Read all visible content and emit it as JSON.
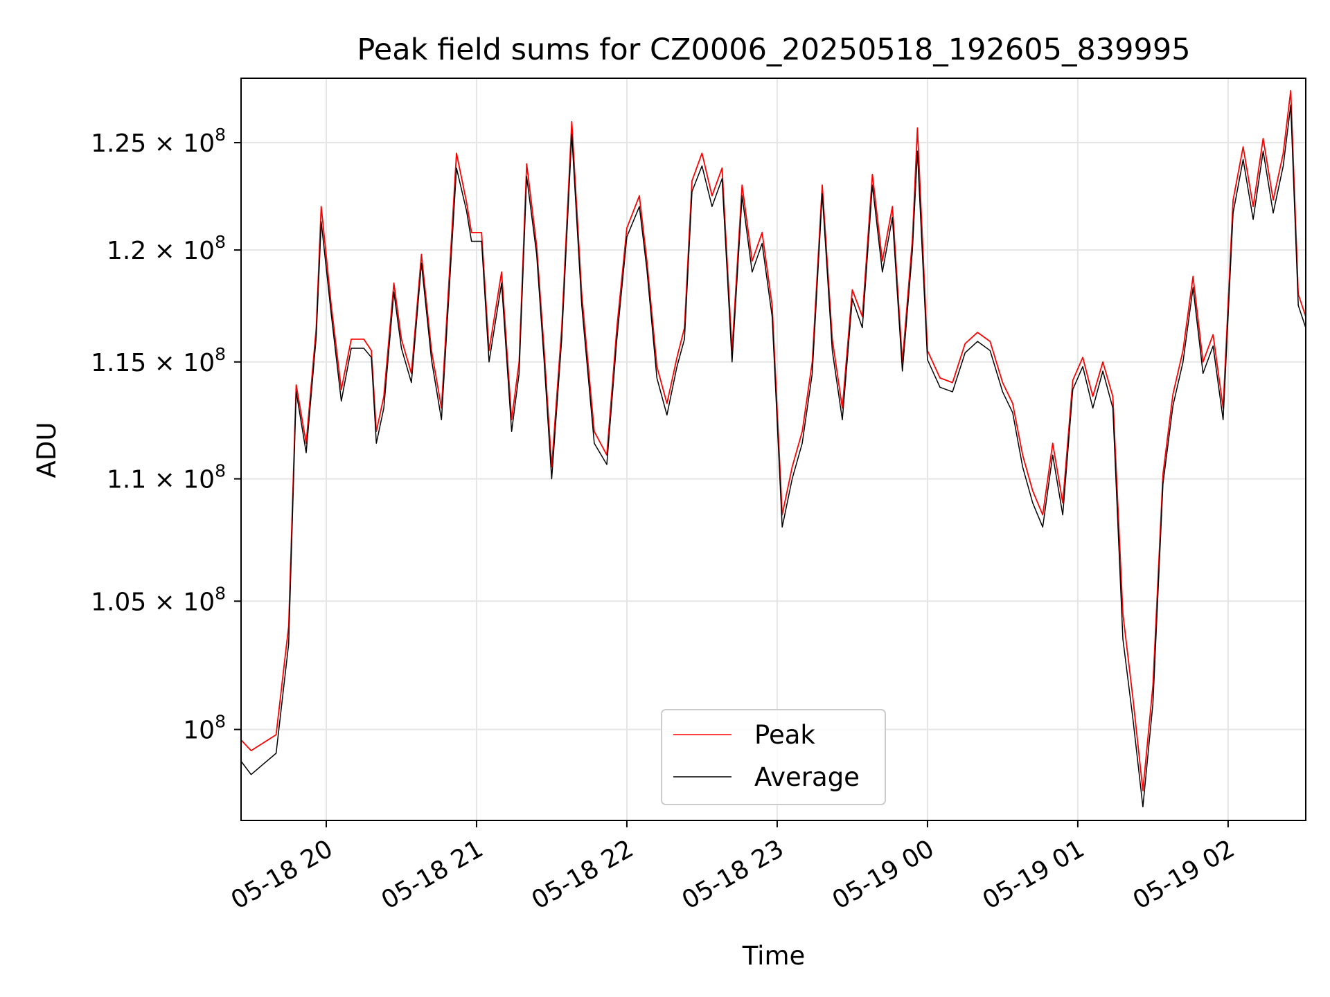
{
  "chart_data": {
    "type": "line",
    "title": "Peak field sums for CZ0006_20250518_192605_839995",
    "xlabel": "Time",
    "ylabel": "ADU",
    "yscale": "log",
    "grid": true,
    "legend_position": "bottom-center",
    "xlim": [
      "2025-05-18 19:26",
      "2025-05-19 02:31"
    ],
    "ylim": [
      96600000,
      128100000
    ],
    "x_ticks": [
      {
        "value": "2025-05-18 20:00",
        "label": "05-18 20"
      },
      {
        "value": "2025-05-18 21:00",
        "label": "05-18 21"
      },
      {
        "value": "2025-05-18 22:00",
        "label": "05-18 22"
      },
      {
        "value": "2025-05-18 23:00",
        "label": "05-18 23"
      },
      {
        "value": "2025-05-19 00:00",
        "label": "05-19 00"
      },
      {
        "value": "2025-05-19 01:00",
        "label": "05-19 01"
      },
      {
        "value": "2025-05-19 02:00",
        "label": "05-19 02"
      }
    ],
    "y_ticks": [
      {
        "value": 100000000,
        "label": "10",
        "exp": "8"
      },
      {
        "value": 105000000,
        "label": "1.05 × 10",
        "exp": "8"
      },
      {
        "value": 110000000,
        "label": "1.1 × 10",
        "exp": "8"
      },
      {
        "value": 115000000,
        "label": "1.15 × 10",
        "exp": "8"
      },
      {
        "value": 120000000,
        "label": "1.2 × 10",
        "exp": "8"
      },
      {
        "value": 125000000,
        "label": "1.25 × 10",
        "exp": "8"
      }
    ],
    "series": [
      {
        "name": "Peak",
        "color": "#ff0000",
        "points": [
          [
            "2025-05-18 19:26",
            99600000
          ],
          [
            "2025-05-18 19:30",
            99200000
          ],
          [
            "2025-05-18 19:35",
            99500000
          ],
          [
            "2025-05-18 19:40",
            99800000
          ],
          [
            "2025-05-18 19:45",
            104000000
          ],
          [
            "2025-05-18 19:48",
            114000000
          ],
          [
            "2025-05-18 19:52",
            111500000
          ],
          [
            "2025-05-18 19:56",
            116500000
          ],
          [
            "2025-05-18 19:58",
            122000000
          ],
          [
            "2025-05-18 20:02",
            117500000
          ],
          [
            "2025-05-18 20:06",
            113800000
          ],
          [
            "2025-05-18 20:10",
            116000000
          ],
          [
            "2025-05-18 20:15",
            116000000
          ],
          [
            "2025-05-18 20:18",
            115500000
          ],
          [
            "2025-05-18 20:20",
            112000000
          ],
          [
            "2025-05-18 20:23",
            113500000
          ],
          [
            "2025-05-18 20:27",
            118500000
          ],
          [
            "2025-05-18 20:30",
            116000000
          ],
          [
            "2025-05-18 20:34",
            114500000
          ],
          [
            "2025-05-18 20:38",
            119800000
          ],
          [
            "2025-05-18 20:42",
            115500000
          ],
          [
            "2025-05-18 20:46",
            113000000
          ],
          [
            "2025-05-18 20:52",
            124500000
          ],
          [
            "2025-05-18 20:56",
            122200000
          ],
          [
            "2025-05-18 20:58",
            120800000
          ],
          [
            "2025-05-18 21:02",
            120800000
          ],
          [
            "2025-05-18 21:05",
            115500000
          ],
          [
            "2025-05-18 21:10",
            119000000
          ],
          [
            "2025-05-18 21:14",
            112500000
          ],
          [
            "2025-05-18 21:17",
            115000000
          ],
          [
            "2025-05-18 21:20",
            124000000
          ],
          [
            "2025-05-18 21:24",
            120200000
          ],
          [
            "2025-05-18 21:27",
            115500000
          ],
          [
            "2025-05-18 21:30",
            110500000
          ],
          [
            "2025-05-18 21:34",
            116500000
          ],
          [
            "2025-05-18 21:38",
            126000000
          ],
          [
            "2025-05-18 21:42",
            118000000
          ],
          [
            "2025-05-18 21:47",
            112000000
          ],
          [
            "2025-05-18 21:52",
            111000000
          ],
          [
            "2025-05-18 21:56",
            116500000
          ],
          [
            "2025-05-18 22:00",
            121000000
          ],
          [
            "2025-05-18 22:05",
            122500000
          ],
          [
            "2025-05-18 22:08",
            119500000
          ],
          [
            "2025-05-18 22:12",
            114800000
          ],
          [
            "2025-05-18 22:16",
            113200000
          ],
          [
            "2025-05-18 22:20",
            115200000
          ],
          [
            "2025-05-18 22:23",
            116500000
          ],
          [
            "2025-05-18 22:26",
            123200000
          ],
          [
            "2025-05-18 22:30",
            124500000
          ],
          [
            "2025-05-18 22:34",
            122500000
          ],
          [
            "2025-05-18 22:38",
            123800000
          ],
          [
            "2025-05-18 22:42",
            115500000
          ],
          [
            "2025-05-18 22:46",
            123000000
          ],
          [
            "2025-05-18 22:50",
            119500000
          ],
          [
            "2025-05-18 22:54",
            120800000
          ],
          [
            "2025-05-18 22:58",
            117500000
          ],
          [
            "2025-05-18 23:02",
            108500000
          ],
          [
            "2025-05-18 23:06",
            110500000
          ],
          [
            "2025-05-18 23:10",
            112000000
          ],
          [
            "2025-05-18 23:14",
            115000000
          ],
          [
            "2025-05-18 23:18",
            123000000
          ],
          [
            "2025-05-18 23:22",
            116000000
          ],
          [
            "2025-05-18 23:26",
            113000000
          ],
          [
            "2025-05-18 23:30",
            118200000
          ],
          [
            "2025-05-18 23:34",
            117000000
          ],
          [
            "2025-05-18 23:38",
            123500000
          ],
          [
            "2025-05-18 23:42",
            119500000
          ],
          [
            "2025-05-18 23:46",
            122000000
          ],
          [
            "2025-05-18 23:50",
            115000000
          ],
          [
            "2025-05-18 23:54",
            120500000
          ],
          [
            "2025-05-18 23:56",
            125700000
          ],
          [
            "2025-05-19 00:00",
            115500000
          ],
          [
            "2025-05-19 00:05",
            114300000
          ],
          [
            "2025-05-19 00:10",
            114100000
          ],
          [
            "2025-05-19 00:15",
            115800000
          ],
          [
            "2025-05-19 00:20",
            116300000
          ],
          [
            "2025-05-19 00:25",
            115900000
          ],
          [
            "2025-05-19 00:30",
            114100000
          ],
          [
            "2025-05-19 00:34",
            113200000
          ],
          [
            "2025-05-19 00:38",
            111000000
          ],
          [
            "2025-05-19 00:42",
            109500000
          ],
          [
            "2025-05-19 00:46",
            108500000
          ],
          [
            "2025-05-19 00:50",
            111500000
          ],
          [
            "2025-05-19 00:54",
            109000000
          ],
          [
            "2025-05-19 00:58",
            114200000
          ],
          [
            "2025-05-19 01:02",
            115200000
          ],
          [
            "2025-05-19 01:06",
            113500000
          ],
          [
            "2025-05-19 01:10",
            115000000
          ],
          [
            "2025-05-19 01:14",
            113500000
          ],
          [
            "2025-05-19 01:18",
            104500000
          ],
          [
            "2025-05-19 01:22",
            101200000
          ],
          [
            "2025-05-19 01:26",
            97700000
          ],
          [
            "2025-05-19 01:30",
            101700000
          ],
          [
            "2025-05-19 01:34",
            110200000
          ],
          [
            "2025-05-19 01:38",
            113600000
          ],
          [
            "2025-05-19 01:42",
            115500000
          ],
          [
            "2025-05-19 01:46",
            118800000
          ],
          [
            "2025-05-19 01:50",
            115000000
          ],
          [
            "2025-05-19 01:54",
            116200000
          ],
          [
            "2025-05-19 01:58",
            113000000
          ],
          [
            "2025-05-19 02:02",
            122300000
          ],
          [
            "2025-05-19 02:06",
            124800000
          ],
          [
            "2025-05-19 02:10",
            122000000
          ],
          [
            "2025-05-19 02:14",
            125200000
          ],
          [
            "2025-05-19 02:18",
            122300000
          ],
          [
            "2025-05-19 02:22",
            124500000
          ],
          [
            "2025-05-19 02:25",
            127500000
          ],
          [
            "2025-05-19 02:28",
            118000000
          ],
          [
            "2025-05-19 02:31",
            117000000
          ]
        ]
      },
      {
        "name": "Average",
        "color": "#000000",
        "points": [
          [
            "2025-05-18 19:26",
            98800000
          ],
          [
            "2025-05-18 19:30",
            98300000
          ],
          [
            "2025-05-18 19:35",
            98700000
          ],
          [
            "2025-05-18 19:40",
            99100000
          ],
          [
            "2025-05-18 19:45",
            103300000
          ],
          [
            "2025-05-18 19:48",
            113700000
          ],
          [
            "2025-05-18 19:52",
            111100000
          ],
          [
            "2025-05-18 19:56",
            116100000
          ],
          [
            "2025-05-18 19:58",
            121300000
          ],
          [
            "2025-05-18 20:02",
            117100000
          ],
          [
            "2025-05-18 20:06",
            113300000
          ],
          [
            "2025-05-18 20:10",
            115600000
          ],
          [
            "2025-05-18 20:15",
            115600000
          ],
          [
            "2025-05-18 20:18",
            115200000
          ],
          [
            "2025-05-18 20:20",
            111500000
          ],
          [
            "2025-05-18 20:23",
            113000000
          ],
          [
            "2025-05-18 20:27",
            118100000
          ],
          [
            "2025-05-18 20:30",
            115600000
          ],
          [
            "2025-05-18 20:34",
            114100000
          ],
          [
            "2025-05-18 20:38",
            119400000
          ],
          [
            "2025-05-18 20:42",
            115100000
          ],
          [
            "2025-05-18 20:46",
            112500000
          ],
          [
            "2025-05-18 20:52",
            123800000
          ],
          [
            "2025-05-18 20:56",
            121800000
          ],
          [
            "2025-05-18 20:58",
            120400000
          ],
          [
            "2025-05-18 21:02",
            120400000
          ],
          [
            "2025-05-18 21:05",
            115000000
          ],
          [
            "2025-05-18 21:10",
            118500000
          ],
          [
            "2025-05-18 21:14",
            112000000
          ],
          [
            "2025-05-18 21:17",
            114500000
          ],
          [
            "2025-05-18 21:20",
            123400000
          ],
          [
            "2025-05-18 21:24",
            119800000
          ],
          [
            "2025-05-18 21:27",
            115000000
          ],
          [
            "2025-05-18 21:30",
            110000000
          ],
          [
            "2025-05-18 21:34",
            116000000
          ],
          [
            "2025-05-18 21:38",
            125400000
          ],
          [
            "2025-05-18 21:42",
            117500000
          ],
          [
            "2025-05-18 21:47",
            111500000
          ],
          [
            "2025-05-18 21:52",
            110600000
          ],
          [
            "2025-05-18 21:56",
            116000000
          ],
          [
            "2025-05-18 22:00",
            120600000
          ],
          [
            "2025-05-18 22:05",
            122000000
          ],
          [
            "2025-05-18 22:08",
            119100000
          ],
          [
            "2025-05-18 22:12",
            114300000
          ],
          [
            "2025-05-18 22:16",
            112700000
          ],
          [
            "2025-05-18 22:20",
            114800000
          ],
          [
            "2025-05-18 22:23",
            116000000
          ],
          [
            "2025-05-18 22:26",
            122700000
          ],
          [
            "2025-05-18 22:30",
            123900000
          ],
          [
            "2025-05-18 22:34",
            122000000
          ],
          [
            "2025-05-18 22:38",
            123300000
          ],
          [
            "2025-05-18 22:42",
            115000000
          ],
          [
            "2025-05-18 22:46",
            122500000
          ],
          [
            "2025-05-18 22:50",
            119000000
          ],
          [
            "2025-05-18 22:54",
            120300000
          ],
          [
            "2025-05-18 22:58",
            117000000
          ],
          [
            "2025-05-18 23:02",
            108000000
          ],
          [
            "2025-05-18 23:06",
            110000000
          ],
          [
            "2025-05-18 23:10",
            111500000
          ],
          [
            "2025-05-18 23:14",
            114500000
          ],
          [
            "2025-05-18 23:18",
            122600000
          ],
          [
            "2025-05-18 23:22",
            115500000
          ],
          [
            "2025-05-18 23:26",
            112500000
          ],
          [
            "2025-05-18 23:30",
            117800000
          ],
          [
            "2025-05-18 23:34",
            116500000
          ],
          [
            "2025-05-18 23:38",
            123000000
          ],
          [
            "2025-05-18 23:42",
            119000000
          ],
          [
            "2025-05-18 23:46",
            121500000
          ],
          [
            "2025-05-18 23:50",
            114600000
          ],
          [
            "2025-05-18 23:54",
            120000000
          ],
          [
            "2025-05-18 23:56",
            124600000
          ],
          [
            "2025-05-19 00:00",
            115100000
          ],
          [
            "2025-05-19 00:05",
            113900000
          ],
          [
            "2025-05-19 00:10",
            113700000
          ],
          [
            "2025-05-19 00:15",
            115400000
          ],
          [
            "2025-05-19 00:20",
            115900000
          ],
          [
            "2025-05-19 00:25",
            115500000
          ],
          [
            "2025-05-19 00:30",
            113700000
          ],
          [
            "2025-05-19 00:34",
            112800000
          ],
          [
            "2025-05-19 00:38",
            110500000
          ],
          [
            "2025-05-19 00:42",
            109000000
          ],
          [
            "2025-05-19 00:46",
            108000000
          ],
          [
            "2025-05-19 00:50",
            111000000
          ],
          [
            "2025-05-19 00:54",
            108500000
          ],
          [
            "2025-05-19 00:58",
            113800000
          ],
          [
            "2025-05-19 01:02",
            114800000
          ],
          [
            "2025-05-19 01:06",
            113000000
          ],
          [
            "2025-05-19 01:10",
            114600000
          ],
          [
            "2025-05-19 01:14",
            113000000
          ],
          [
            "2025-05-19 01:18",
            103500000
          ],
          [
            "2025-05-19 01:22",
            100400000
          ],
          [
            "2025-05-19 01:26",
            97100000
          ],
          [
            "2025-05-19 01:30",
            101000000
          ],
          [
            "2025-05-19 01:34",
            109800000
          ],
          [
            "2025-05-19 01:38",
            113100000
          ],
          [
            "2025-05-19 01:42",
            115000000
          ],
          [
            "2025-05-19 01:46",
            118300000
          ],
          [
            "2025-05-19 01:50",
            114500000
          ],
          [
            "2025-05-19 01:54",
            115700000
          ],
          [
            "2025-05-19 01:58",
            112500000
          ],
          [
            "2025-05-19 02:02",
            121700000
          ],
          [
            "2025-05-19 02:06",
            124200000
          ],
          [
            "2025-05-19 02:10",
            121400000
          ],
          [
            "2025-05-19 02:14",
            124600000
          ],
          [
            "2025-05-19 02:18",
            121700000
          ],
          [
            "2025-05-19 02:22",
            123900000
          ],
          [
            "2025-05-19 02:25",
            126800000
          ],
          [
            "2025-05-19 02:28",
            117500000
          ],
          [
            "2025-05-19 02:31",
            116500000
          ]
        ]
      }
    ]
  }
}
